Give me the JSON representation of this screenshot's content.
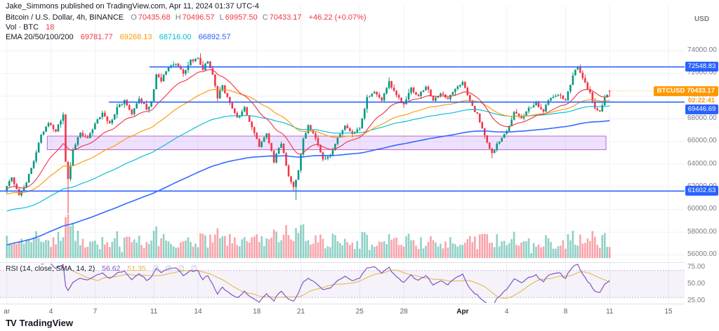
{
  "meta": {
    "attribution": "Jake_Simmons published on TradingView.com, Apr 11, 2024 01:37 UTC-4"
  },
  "header": {
    "symbol_title": "Bitcoin / U.S. Dollar, 4h, BINANCE",
    "ohlc": {
      "o_label": "O",
      "o": "70435.68",
      "h_label": "H",
      "h": "70496.57",
      "l_label": "L",
      "l": "69957.50",
      "c_label": "C",
      "c": "70433.17",
      "change": "+46.22 (+0.07%)"
    },
    "volume": {
      "label": "Vol · BTC",
      "value": "18"
    },
    "ema": {
      "label": "EMA 20/50/100/200",
      "values": [
        "69781.77",
        "69268.13",
        "68716.00",
        "66892.57"
      ]
    }
  },
  "rsi_panel": {
    "label": "RSI (14, close, SMA, 14, 2)",
    "value": "56.62",
    "ma_value": "51.35",
    "hidden": "∅ ∅ ∅ ∅"
  },
  "axis": {
    "currency": "USD"
  },
  "labels": {
    "resistance": "72548.83",
    "mid": "69446.69",
    "lower": "61602.63",
    "last_symbol": "BTCUSD",
    "last_price": "70433.17",
    "countdown": "02:22:41"
  },
  "footer": {
    "logo": "TV",
    "brand": "TradingView"
  },
  "chart_data": {
    "type": "candlestick",
    "symbol": "BINANCE:BTCUSD",
    "title": "Bitcoin / U.S. Dollar, 4h, BINANCE",
    "interval": "4h",
    "candle_count": 247,
    "last": {
      "open": 70435.68,
      "high": 70496.57,
      "low": 69957.5,
      "close": 70433.17,
      "change": 46.22,
      "change_pct": 0.07
    },
    "ema": {
      "periods": [
        20,
        50,
        100,
        200
      ],
      "last_values": [
        69781.77,
        69268.13,
        68716.0,
        66892.57
      ],
      "init_values": [
        61800,
        61300,
        59800,
        56800
      ]
    },
    "horizontal_lines": [
      {
        "price": 72548.83,
        "x_start": 213
      },
      {
        "price": 69446.69,
        "x_start": 155
      },
      {
        "price": 61602.63,
        "x_start": 0
      }
    ],
    "zone": {
      "top": 66450,
      "bottom": 65250,
      "i_start": 17,
      "i_end": 245
    },
    "rsi": {
      "period": 14,
      "last": 56.62,
      "ma_last": 51.35,
      "upper_band": 70,
      "lower_band": 30
    },
    "y_axis": {
      "min": 56000,
      "max": 74000
    },
    "y_ticks": [
      {
        "label": "74000.00",
        "v": 74000
      },
      {
        "label": "72000.00",
        "v": 72000
      },
      {
        "label": "70000.00",
        "v": 70000
      },
      {
        "label": "68000.00",
        "v": 68000
      },
      {
        "label": "66000.00",
        "v": 66000
      },
      {
        "label": "64000.00",
        "v": 64000
      },
      {
        "label": "62000.00",
        "v": 62000
      },
      {
        "label": "60000.00",
        "v": 60000
      },
      {
        "label": "58000.00",
        "v": 58000
      },
      {
        "label": "56000.00",
        "v": 56000
      }
    ],
    "rsi_ticks": [
      {
        "label": "75.00",
        "v": 75
      },
      {
        "label": "50.00",
        "v": 50
      },
      {
        "label": "25.00",
        "v": 25
      }
    ],
    "time_ticks": [
      {
        "label": "ar",
        "i": 0
      },
      {
        "label": "4",
        "i": 18
      },
      {
        "label": "7",
        "i": 36
      },
      {
        "label": "11",
        "i": 60
      },
      {
        "label": "14",
        "i": 78
      },
      {
        "label": "18",
        "i": 102
      },
      {
        "label": "21",
        "i": 120
      },
      {
        "label": "25",
        "i": 144
      },
      {
        "label": "28",
        "i": 162
      },
      {
        "label": "Apr",
        "i": 186
      },
      {
        "label": "4",
        "i": 204
      },
      {
        "label": "8",
        "i": 228
      },
      {
        "label": "11",
        "i": 246
      },
      {
        "label": "15",
        "i": 270
      }
    ],
    "price_path_waypoints": [
      [
        0,
        61600
      ],
      [
        3,
        62800
      ],
      [
        6,
        61200
      ],
      [
        9,
        62400
      ],
      [
        12,
        64300
      ],
      [
        15,
        66500
      ],
      [
        18,
        67600
      ],
      [
        21,
        66900
      ],
      [
        24,
        68300
      ],
      [
        25,
        64100
      ],
      [
        26,
        62600
      ],
      [
        28,
        65200
      ],
      [
        31,
        66800
      ],
      [
        34,
        66200
      ],
      [
        37,
        67500
      ],
      [
        40,
        68400
      ],
      [
        43,
        67600
      ],
      [
        46,
        68900
      ],
      [
        49,
        69600
      ],
      [
        52,
        68500
      ],
      [
        55,
        69700
      ],
      [
        58,
        68900
      ],
      [
        60,
        69400
      ],
      [
        62,
        71900
      ],
      [
        64,
        71400
      ],
      [
        67,
        72600
      ],
      [
        70,
        72900
      ],
      [
        73,
        71900
      ],
      [
        76,
        73100
      ],
      [
        79,
        73300
      ],
      [
        81,
        72400
      ],
      [
        83,
        73100
      ],
      [
        85,
        72000
      ],
      [
        87,
        69800
      ],
      [
        89,
        70900
      ],
      [
        92,
        69300
      ],
      [
        95,
        68100
      ],
      [
        98,
        68900
      ],
      [
        101,
        67200
      ],
      [
        104,
        65600
      ],
      [
        107,
        66700
      ],
      [
        110,
        64200
      ],
      [
        113,
        65900
      ],
      [
        116,
        63000
      ],
      [
        118,
        61900
      ],
      [
        120,
        63400
      ],
      [
        122,
        66200
      ],
      [
        124,
        67400
      ],
      [
        127,
        66300
      ],
      [
        130,
        64300
      ],
      [
        133,
        64600
      ],
      [
        136,
        66200
      ],
      [
        139,
        67300
      ],
      [
        142,
        66700
      ],
      [
        145,
        67200
      ],
      [
        148,
        69800
      ],
      [
        151,
        70400
      ],
      [
        154,
        69700
      ],
      [
        157,
        71200
      ],
      [
        160,
        70100
      ],
      [
        163,
        69200
      ],
      [
        166,
        70600
      ],
      [
        169,
        69900
      ],
      [
        172,
        70900
      ],
      [
        175,
        69600
      ],
      [
        178,
        70300
      ],
      [
        181,
        69800
      ],
      [
        184,
        70700
      ],
      [
        187,
        71200
      ],
      [
        190,
        69400
      ],
      [
        193,
        68300
      ],
      [
        196,
        66400
      ],
      [
        199,
        65000
      ],
      [
        202,
        66000
      ],
      [
        205,
        66800
      ],
      [
        208,
        68600
      ],
      [
        211,
        67900
      ],
      [
        214,
        68900
      ],
      [
        217,
        69300
      ],
      [
        220,
        68700
      ],
      [
        223,
        69900
      ],
      [
        226,
        70100
      ],
      [
        229,
        69600
      ],
      [
        232,
        71800
      ],
      [
        234,
        72600
      ],
      [
        236,
        71500
      ],
      [
        239,
        70300
      ],
      [
        241,
        69000
      ],
      [
        243,
        68700
      ],
      [
        245,
        69900
      ],
      [
        247,
        70433
      ]
    ],
    "spike_lows": [
      [
        25,
        59600
      ],
      [
        118,
        60800
      ],
      [
        198,
        64500
      ]
    ],
    "spike_highs": [
      [
        79,
        73750
      ],
      [
        234,
        72750
      ]
    ],
    "colors": {
      "up": "#089981",
      "down": "#f23645",
      "vol_up": "rgba(8,153,129,0.45)",
      "vol_down": "rgba(242,54,69,0.45)",
      "line": "#2962ff",
      "zone_fill": "rgba(187,134,252,0.25)",
      "zone_border": "#ba68c8",
      "ema": [
        "#f23645",
        "#ff9800",
        "#00bcd4",
        "#2962ff"
      ],
      "rsi": "#7e57c2",
      "rsi_ma": "#dfb73d",
      "rsi_band": "rgba(126,87,194,0.08)",
      "rsi_band_border": "rgba(126,87,194,0.45)",
      "last_label": "#ff9800",
      "grid": "#eef0f3",
      "axis_text": "#787b86"
    }
  }
}
